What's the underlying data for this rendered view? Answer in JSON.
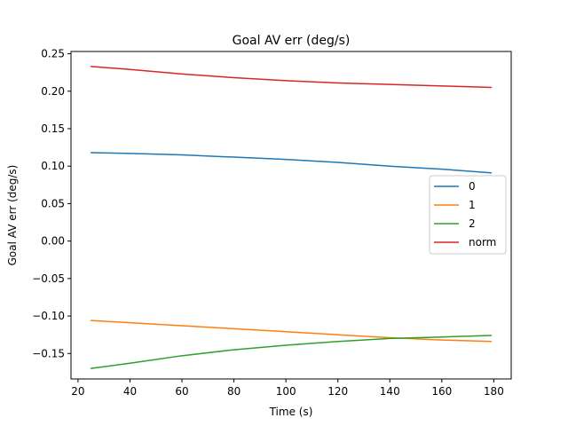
{
  "chart_data": {
    "type": "line",
    "title": "Goal AV err (deg/s)",
    "xlabel": "Time (s)",
    "ylabel": "Goal AV err (deg/s)",
    "xlim": [
      17.3,
      186.7
    ],
    "ylim": [
      -0.184,
      0.253
    ],
    "xticks": [
      20,
      40,
      60,
      80,
      100,
      120,
      140,
      160,
      180
    ],
    "yticks": [
      -0.15,
      -0.1,
      -0.05,
      0.0,
      0.05,
      0.1,
      0.15,
      0.2,
      0.25
    ],
    "ytick_labels": [
      "−0.15",
      "−0.10",
      "−0.05",
      "0.00",
      "0.05",
      "0.10",
      "0.15",
      "0.20",
      "0.25"
    ],
    "grid": false,
    "legend": "center-right",
    "x": [
      25,
      40,
      60,
      80,
      100,
      120,
      140,
      160,
      179
    ],
    "series": [
      {
        "name": "0",
        "color": "#1f77b4",
        "values": [
          0.118,
          0.117,
          0.115,
          0.112,
          0.109,
          0.105,
          0.1,
          0.096,
          0.091
        ]
      },
      {
        "name": "1",
        "color": "#ff7f0e",
        "values": [
          -0.106,
          -0.109,
          -0.113,
          -0.117,
          -0.121,
          -0.125,
          -0.129,
          -0.132,
          -0.134
        ]
      },
      {
        "name": "2",
        "color": "#2ca02c",
        "values": [
          -0.17,
          -0.163,
          -0.153,
          -0.145,
          -0.139,
          -0.134,
          -0.13,
          -0.128,
          -0.126
        ]
      },
      {
        "name": "norm",
        "color": "#d62728",
        "values": [
          0.233,
          0.229,
          0.223,
          0.218,
          0.214,
          0.211,
          0.209,
          0.207,
          0.205
        ]
      }
    ]
  }
}
